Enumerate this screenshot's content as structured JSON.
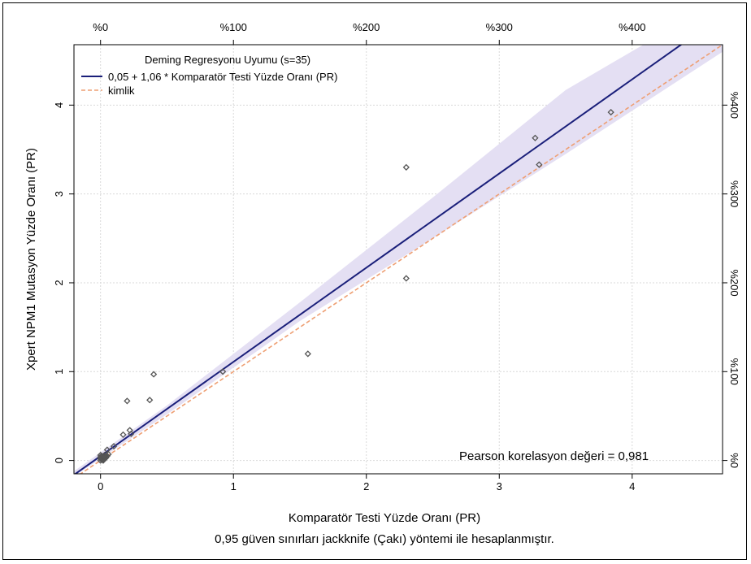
{
  "chart_data": {
    "type": "scatter",
    "xlabel": "Komparatör Testi Yüzde Oranı (PR)",
    "ylabel": "Xpert NPM1 Mutasyon Yüzde Oranı (PR)",
    "footnote": "0,95 güven sınırları jackknife (Çakı) yöntemi ile hesaplanmıştır.",
    "xlim": [
      -0.2,
      4.68
    ],
    "ylim": [
      -0.15,
      4.68
    ],
    "x_ticks": [
      0,
      1,
      2,
      3,
      4
    ],
    "x_tick_labels": [
      "0",
      "1",
      "2",
      "3",
      "4"
    ],
    "y_ticks": [
      0,
      1,
      2,
      3,
      4
    ],
    "y_tick_labels": [
      "0",
      "1",
      "2",
      "3",
      "4"
    ],
    "top_ticks": [
      0,
      1,
      2,
      3,
      4
    ],
    "top_tick_labels": [
      "%0",
      "%100",
      "%200",
      "%300",
      "%400"
    ],
    "right_ticks": [
      0,
      1,
      2,
      3,
      4
    ],
    "right_tick_labels": [
      "%0",
      "%100",
      "%200",
      "%300",
      "%400"
    ],
    "grid": true,
    "legend": {
      "title": "Deming Regresyonu Uyumu (s=35)",
      "entries": [
        {
          "label": "0,05 + 1,06 * Komparatör Testi Yüzde Oranı (PR)",
          "color": "#1a1f7a",
          "style": "solid"
        },
        {
          "label": "kimlik",
          "color": "#f0a070",
          "style": "dashed"
        }
      ],
      "placement": "top-left"
    },
    "annotation": "Pearson korelasyon değeri = 0,981",
    "regression": {
      "intercept": 0.05,
      "slope": 1.06
    },
    "identity": {
      "intercept": 0,
      "slope": 1
    },
    "confidence_band": {
      "x": [
        -0.2,
        0.5,
        1.5,
        2.5,
        3.5,
        4.68
      ],
      "lower": [
        -0.18,
        0.52,
        1.57,
        2.5,
        3.45,
        4.6
      ],
      "upper": [
        -0.12,
        0.62,
        1.78,
        2.96,
        4.17,
        5.2
      ]
    },
    "points": [
      {
        "x": 0.0,
        "y": 0.0
      },
      {
        "x": 0.0,
        "y": 0.02
      },
      {
        "x": 0.01,
        "y": 0.01
      },
      {
        "x": 0.01,
        "y": 0.03
      },
      {
        "x": 0.02,
        "y": 0.04
      },
      {
        "x": 0.0,
        "y": 0.06
      },
      {
        "x": 0.03,
        "y": 0.02
      },
      {
        "x": 0.02,
        "y": 0.0
      },
      {
        "x": 0.04,
        "y": 0.05
      },
      {
        "x": 0.01,
        "y": 0.05
      },
      {
        "x": 0.03,
        "y": 0.04
      },
      {
        "x": 0.0,
        "y": 0.03
      },
      {
        "x": 0.05,
        "y": 0.12
      },
      {
        "x": 0.1,
        "y": 0.16
      },
      {
        "x": 0.17,
        "y": 0.29
      },
      {
        "x": 0.2,
        "y": 0.67
      },
      {
        "x": 0.22,
        "y": 0.34
      },
      {
        "x": 0.23,
        "y": 0.3
      },
      {
        "x": 0.37,
        "y": 0.68
      },
      {
        "x": 0.4,
        "y": 0.97
      },
      {
        "x": 0.92,
        "y": 1.0
      },
      {
        "x": 1.56,
        "y": 1.2
      },
      {
        "x": 2.3,
        "y": 2.05
      },
      {
        "x": 2.3,
        "y": 3.3
      },
      {
        "x": 3.27,
        "y": 3.63
      },
      {
        "x": 3.3,
        "y": 3.33
      },
      {
        "x": 3.84,
        "y": 3.92
      },
      {
        "x": 0.02,
        "y": 0.01
      },
      {
        "x": 0.03,
        "y": 0.06
      },
      {
        "x": 0.01,
        "y": 0.02
      },
      {
        "x": 0.04,
        "y": 0.03
      },
      {
        "x": 0.0,
        "y": 0.04
      },
      {
        "x": 0.02,
        "y": 0.02
      },
      {
        "x": 0.05,
        "y": 0.05
      },
      {
        "x": 0.06,
        "y": 0.07
      }
    ]
  },
  "colors": {
    "band": "#e4dff3",
    "regression": "#1a1f7a",
    "identity": "#ee9f73",
    "grid": "#d9d9d9",
    "point": "#555555"
  }
}
